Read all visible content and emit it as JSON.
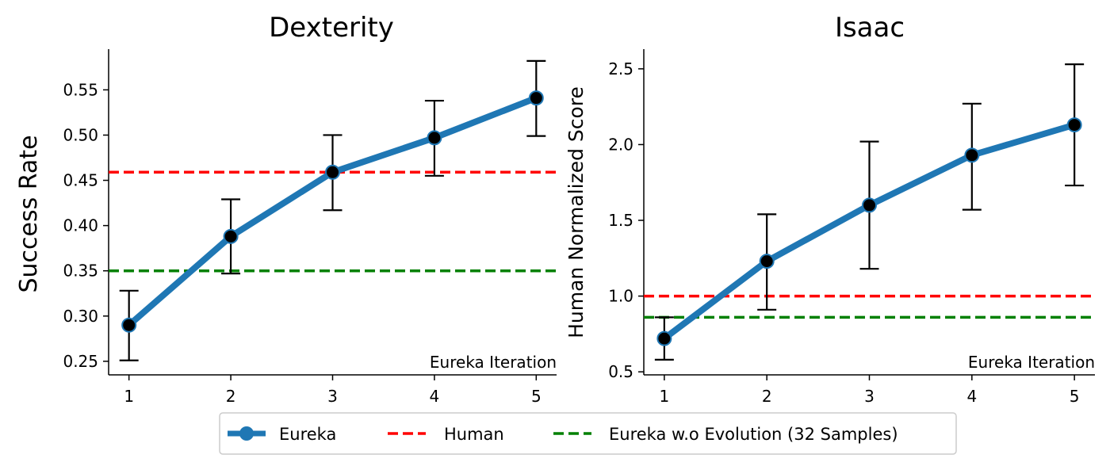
{
  "chart_data": [
    {
      "type": "line",
      "title": "Dexterity",
      "xlabel": "Eureka Iteration",
      "ylabel": "Success Rate",
      "x": [
        1,
        2,
        3,
        4,
        5
      ],
      "xticks": [
        "1",
        "2",
        "3",
        "4",
        "5"
      ],
      "ylim": [
        0.235,
        0.595
      ],
      "yticks": [
        "0.25",
        "0.30",
        "0.35",
        "0.40",
        "0.45",
        "0.50",
        "0.55"
      ],
      "series": [
        {
          "name": "Eureka",
          "values": [
            0.29,
            0.388,
            0.459,
            0.497,
            0.541
          ],
          "err_low": [
            0.251,
            0.347,
            0.417,
            0.455,
            0.499
          ],
          "err_high": [
            0.328,
            0.429,
            0.5,
            0.538,
            0.582
          ]
        }
      ],
      "hlines": [
        {
          "name": "Human",
          "y": 0.459,
          "color": "#ff0000"
        },
        {
          "name": "Eureka w.o Evolution (32 Samples)",
          "y": 0.35,
          "color": "#008000"
        }
      ],
      "grid": false
    },
    {
      "type": "line",
      "title": "Isaac",
      "xlabel": "Eureka Iteration",
      "ylabel": "Human Normalized Score",
      "x": [
        1,
        2,
        3,
        4,
        5
      ],
      "xticks": [
        "1",
        "2",
        "3",
        "4",
        "5"
      ],
      "ylim": [
        0.48,
        2.63
      ],
      "yticks": [
        "0.5",
        "1.0",
        "1.5",
        "2.0",
        "2.5"
      ],
      "series": [
        {
          "name": "Eureka",
          "values": [
            0.72,
            1.23,
            1.6,
            1.93,
            2.13
          ],
          "err_low": [
            0.58,
            0.91,
            1.18,
            1.57,
            1.73
          ],
          "err_high": [
            0.86,
            1.54,
            2.02,
            2.27,
            2.53
          ]
        }
      ],
      "hlines": [
        {
          "name": "Human",
          "y": 1.0,
          "color": "#ff0000"
        },
        {
          "name": "Eureka w.o Evolution (32 Samples)",
          "y": 0.86,
          "color": "#008000"
        }
      ],
      "grid": false
    }
  ],
  "legend": {
    "placement": "bottom-center",
    "items": [
      {
        "label": "Eureka",
        "color": "#1f77b4",
        "style": "line-marker"
      },
      {
        "label": "Human",
        "color": "#ff0000",
        "style": "dashed"
      },
      {
        "label": "Eureka w.o Evolution (32 Samples)",
        "color": "#008000",
        "style": "dashed"
      }
    ]
  },
  "colors": {
    "eureka": "#1f77b4",
    "human": "#ff0000",
    "no_evolution": "#008000",
    "marker": "#000000"
  }
}
